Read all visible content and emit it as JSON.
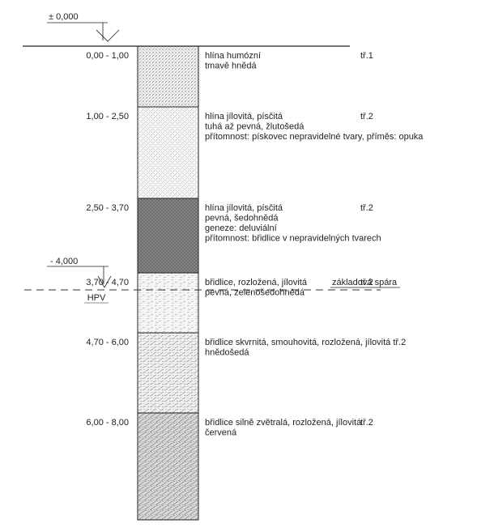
{
  "datums": {
    "top": "± 0,000",
    "foundation_level": "- 4,000",
    "groundwater": "HPV",
    "foundation_joint": "základová spára"
  },
  "layers": [
    {
      "depth": "0,00 - 1,00",
      "description": [
        "hlína humózní",
        "tmavě hnědá"
      ],
      "class": "tř.1",
      "pattern": "hatch-humus",
      "fill": "#f4f4f4"
    },
    {
      "depth": "1,00 - 2,50",
      "description": [
        "hlína jílovitá, písčitá",
        "tuhá až pevná, žlutošedá",
        "přítomnost: pískovec nepravidelné tvary, příměs: opuka"
      ],
      "class": "tř.2",
      "pattern": "hatch-sandy-clay",
      "fill": "#f7f7f7"
    },
    {
      "depth": "2,50 - 3,70",
      "description": [
        "hlína jílovitá, písčitá",
        "pevná, šedohnědá",
        "geneze: deluviální",
        "přítomnost: břidlice v nepravidelných tvarech"
      ],
      "class": "tř.2",
      "pattern": "hatch-dense",
      "fill": "#8a8a8a"
    },
    {
      "depth": "3,70 - 4,70",
      "description": [
        "břidlice, rozložená, jílovitá",
        "pevná, zelenošedohnědá"
      ],
      "class": "tř.2",
      "pattern": "hatch-shale-light",
      "fill": "#f6f6f6"
    },
    {
      "depth": "4,70 - 6,00",
      "description": [
        "břidlice skvrnitá, smouhovitá, rozložená, jílovitá tř.2",
        "hnědošedá"
      ],
      "class": "",
      "pattern": "hatch-shale-mid",
      "fill": "#efefef"
    },
    {
      "depth": "6,00 - 8,00",
      "description": [
        "břidlice silně zvětralá, rozložená, jílovitá",
        "červená"
      ],
      "class": "tř.2",
      "pattern": "hatch-shale-dark",
      "fill": "#d9d9d9"
    }
  ]
}
